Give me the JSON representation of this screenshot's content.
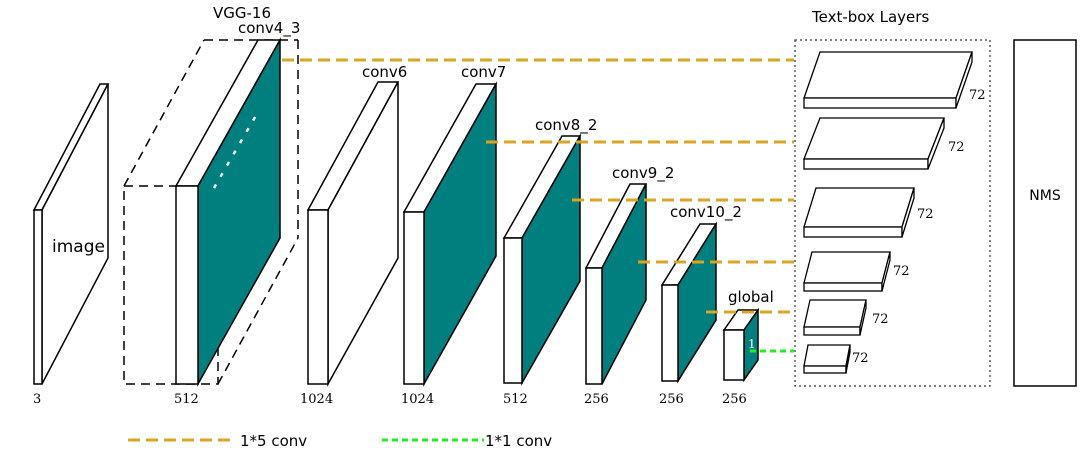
{
  "colors": {
    "teal": "#007f7f",
    "orange": "#daa520",
    "green": "#22ee22",
    "stroke": "#000000"
  },
  "input": {
    "label": "image",
    "channels": "3"
  },
  "backbone": {
    "title": "VGG-16",
    "conv4_label": "conv4_3",
    "conv4_channels": "512"
  },
  "layers": [
    {
      "name": "conv6",
      "channels": "1024"
    },
    {
      "name": "conv7",
      "channels": "1024"
    },
    {
      "name": "conv8_2",
      "channels": "512"
    },
    {
      "name": "conv9_2",
      "channels": "256"
    },
    {
      "name": "conv10_2",
      "channels": "256"
    },
    {
      "name": "global",
      "channels": "256",
      "inner_label": "1"
    }
  ],
  "textbox": {
    "title": "Text-box Layers",
    "outputs": [
      "72",
      "72",
      "72",
      "72",
      "72",
      "72"
    ]
  },
  "nms": {
    "label": "NMS"
  },
  "legend": {
    "orange_label": "1*5 conv",
    "green_label": "1*1 conv"
  }
}
